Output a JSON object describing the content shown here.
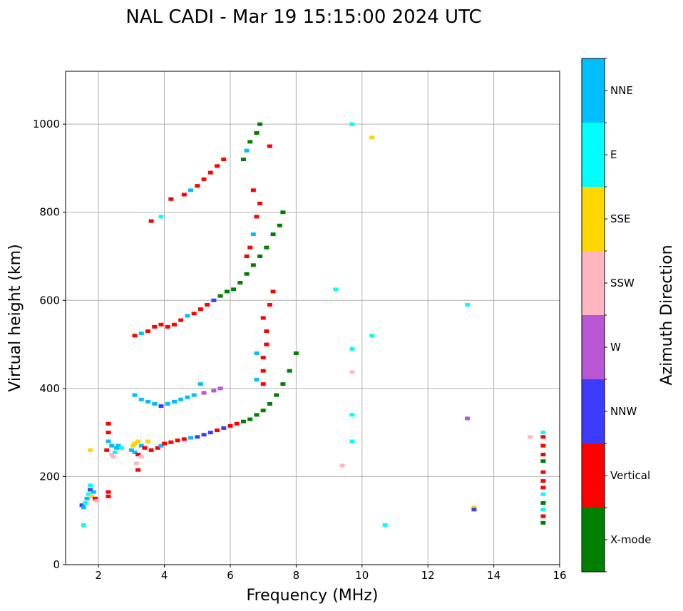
{
  "chart_data": {
    "type": "scatter",
    "title": "NAL CADI - Mar 19 15:15:00 2024 UTC",
    "xlabel": "Frequency (MHz)",
    "ylabel": "Virtual height (km)",
    "xlim": [
      1,
      16
    ],
    "ylim": [
      0,
      1120
    ],
    "xticks": [
      2,
      4,
      6,
      8,
      10,
      12,
      14,
      16
    ],
    "yticks": [
      0,
      200,
      400,
      600,
      800,
      1000
    ],
    "grid": true,
    "colorbar": {
      "label": "Azimuth Direction",
      "placement": "right",
      "categories": [
        {
          "name": "X-mode",
          "color": "#008000"
        },
        {
          "name": "Vertical",
          "color": "#ff0000"
        },
        {
          "name": "NNW",
          "color": "#3c3cff"
        },
        {
          "name": "W",
          "color": "#b956d6"
        },
        {
          "name": "SSW",
          "color": "#ffb6c1"
        },
        {
          "name": "SSE",
          "color": "#ffd700"
        },
        {
          "name": "E",
          "color": "#00ffff"
        },
        {
          "name": "NNE",
          "color": "#00bfff"
        }
      ]
    },
    "points": [
      [
        1.55,
        90,
        "E"
      ],
      [
        1.5,
        135,
        "NNW"
      ],
      [
        1.55,
        130,
        "NNE"
      ],
      [
        1.6,
        140,
        "E"
      ],
      [
        1.65,
        150,
        "NNE"
      ],
      [
        1.7,
        160,
        "E"
      ],
      [
        1.75,
        170,
        "NNW"
      ],
      [
        1.75,
        180,
        "E"
      ],
      [
        1.8,
        155,
        "SSE"
      ],
      [
        1.85,
        165,
        "NNE"
      ],
      [
        1.9,
        150,
        "Vertical"
      ],
      [
        1.95,
        145,
        "SSW"
      ],
      [
        2.3,
        155,
        "Vertical"
      ],
      [
        2.3,
        165,
        "Vertical"
      ],
      [
        1.75,
        260,
        "SSE"
      ],
      [
        2.25,
        260,
        "Vertical"
      ],
      [
        2.3,
        280,
        "NNE"
      ],
      [
        2.3,
        300,
        "Vertical"
      ],
      [
        2.3,
        320,
        "Vertical"
      ],
      [
        2.4,
        250,
        "SSW"
      ],
      [
        2.45,
        245,
        "SSW"
      ],
      [
        2.5,
        255,
        "E"
      ],
      [
        2.55,
        265,
        "NNE"
      ],
      [
        2.6,
        270,
        "NNE"
      ],
      [
        2.7,
        265,
        "E"
      ],
      [
        2.4,
        270,
        "NNE"
      ],
      [
        3.0,
        260,
        "NNE"
      ],
      [
        3.05,
        270,
        "SSE"
      ],
      [
        3.1,
        275,
        "SSE"
      ],
      [
        3.2,
        280,
        "SSE"
      ],
      [
        3.3,
        270,
        "NNE"
      ],
      [
        3.4,
        265,
        "Vertical"
      ],
      [
        3.5,
        280,
        "SSE"
      ],
      [
        3.1,
        255,
        "NNE"
      ],
      [
        3.2,
        250,
        "Vertical"
      ],
      [
        3.3,
        245,
        "SSW"
      ],
      [
        3.15,
        230,
        "SSW"
      ],
      [
        3.2,
        215,
        "Vertical"
      ],
      [
        3.6,
        260,
        "Vertical"
      ],
      [
        3.8,
        265,
        "Vertical"
      ],
      [
        3.9,
        270,
        "NNE"
      ],
      [
        4.0,
        275,
        "Vertical"
      ],
      [
        4.2,
        278,
        "Vertical"
      ],
      [
        4.4,
        282,
        "Vertical"
      ],
      [
        4.6,
        285,
        "Vertical"
      ],
      [
        4.8,
        288,
        "NNE"
      ],
      [
        5.0,
        290,
        "NNW"
      ],
      [
        5.2,
        295,
        "NNW"
      ],
      [
        5.4,
        300,
        "NNW"
      ],
      [
        5.6,
        305,
        "Vertical"
      ],
      [
        5.8,
        310,
        "NNW"
      ],
      [
        6.0,
        315,
        "Vertical"
      ],
      [
        6.2,
        320,
        "Vertical"
      ],
      [
        6.4,
        325,
        "X-mode"
      ],
      [
        6.6,
        330,
        "X-mode"
      ],
      [
        6.8,
        340,
        "X-mode"
      ],
      [
        7.0,
        350,
        "X-mode"
      ],
      [
        7.2,
        365,
        "X-mode"
      ],
      [
        7.4,
        385,
        "X-mode"
      ],
      [
        7.6,
        410,
        "X-mode"
      ],
      [
        7.8,
        440,
        "X-mode"
      ],
      [
        8.0,
        480,
        "X-mode"
      ],
      [
        3.1,
        385,
        "NNE"
      ],
      [
        3.3,
        375,
        "NNE"
      ],
      [
        3.5,
        370,
        "NNE"
      ],
      [
        3.7,
        365,
        "NNE"
      ],
      [
        3.9,
        360,
        "NNW"
      ],
      [
        4.1,
        365,
        "NNE"
      ],
      [
        4.3,
        370,
        "NNE"
      ],
      [
        4.5,
        375,
        "NNE"
      ],
      [
        4.7,
        380,
        "NNE"
      ],
      [
        4.9,
        385,
        "NNE"
      ],
      [
        5.2,
        390,
        "W"
      ],
      [
        5.5,
        395,
        "W"
      ],
      [
        5.7,
        400,
        "W"
      ],
      [
        5.1,
        410,
        "NNE"
      ],
      [
        3.1,
        520,
        "Vertical"
      ],
      [
        3.3,
        525,
        "NNE"
      ],
      [
        3.5,
        530,
        "Vertical"
      ],
      [
        3.7,
        540,
        "Vertical"
      ],
      [
        3.9,
        545,
        "Vertical"
      ],
      [
        4.1,
        540,
        "Vertical"
      ],
      [
        4.3,
        545,
        "Vertical"
      ],
      [
        4.5,
        555,
        "Vertical"
      ],
      [
        4.7,
        565,
        "NNE"
      ],
      [
        4.9,
        570,
        "Vertical"
      ],
      [
        5.1,
        580,
        "Vertical"
      ],
      [
        5.3,
        590,
        "Vertical"
      ],
      [
        5.5,
        600,
        "NNW"
      ],
      [
        5.7,
        610,
        "X-mode"
      ],
      [
        5.9,
        620,
        "X-mode"
      ],
      [
        6.1,
        625,
        "X-mode"
      ],
      [
        6.3,
        640,
        "X-mode"
      ],
      [
        6.5,
        660,
        "X-mode"
      ],
      [
        6.7,
        680,
        "X-mode"
      ],
      [
        6.9,
        700,
        "X-mode"
      ],
      [
        7.1,
        720,
        "X-mode"
      ],
      [
        7.3,
        750,
        "X-mode"
      ],
      [
        7.5,
        770,
        "X-mode"
      ],
      [
        7.6,
        800,
        "X-mode"
      ],
      [
        6.5,
        700,
        "Vertical"
      ],
      [
        6.6,
        720,
        "Vertical"
      ],
      [
        6.7,
        750,
        "NNE"
      ],
      [
        6.8,
        790,
        "Vertical"
      ],
      [
        6.9,
        820,
        "Vertical"
      ],
      [
        6.7,
        850,
        "Vertical"
      ],
      [
        7.0,
        410,
        "Vertical"
      ],
      [
        7.0,
        440,
        "Vertical"
      ],
      [
        7.0,
        470,
        "Vertical"
      ],
      [
        7.1,
        500,
        "Vertical"
      ],
      [
        7.1,
        530,
        "Vertical"
      ],
      [
        7.0,
        560,
        "Vertical"
      ],
      [
        7.2,
        590,
        "Vertical"
      ],
      [
        7.3,
        620,
        "Vertical"
      ],
      [
        6.8,
        420,
        "NNE"
      ],
      [
        6.8,
        480,
        "NNE"
      ],
      [
        3.6,
        780,
        "Vertical"
      ],
      [
        3.9,
        790,
        "E"
      ],
      [
        4.2,
        830,
        "Vertical"
      ],
      [
        4.6,
        840,
        "Vertical"
      ],
      [
        4.8,
        850,
        "NNE"
      ],
      [
        5.0,
        860,
        "Vertical"
      ],
      [
        5.2,
        875,
        "Vertical"
      ],
      [
        5.4,
        890,
        "Vertical"
      ],
      [
        5.6,
        905,
        "Vertical"
      ],
      [
        5.8,
        920,
        "Vertical"
      ],
      [
        6.4,
        920,
        "X-mode"
      ],
      [
        6.5,
        940,
        "NNE"
      ],
      [
        6.6,
        960,
        "X-mode"
      ],
      [
        6.8,
        980,
        "X-mode"
      ],
      [
        6.9,
        1000,
        "X-mode"
      ],
      [
        7.2,
        950,
        "Vertical"
      ],
      [
        9.7,
        1000,
        "E"
      ],
      [
        10.3,
        970,
        "SSE"
      ],
      [
        9.2,
        625,
        "E"
      ],
      [
        10.3,
        520,
        "E"
      ],
      [
        9.7,
        490,
        "E"
      ],
      [
        9.7,
        437,
        "SSW"
      ],
      [
        9.7,
        340,
        "E"
      ],
      [
        9.7,
        280,
        "E"
      ],
      [
        9.4,
        225,
        "SSW"
      ],
      [
        10.7,
        90,
        "E"
      ],
      [
        13.2,
        590,
        "E"
      ],
      [
        13.2,
        332,
        "W"
      ],
      [
        13.4,
        130,
        "SSE"
      ],
      [
        13.4,
        125,
        "NNW"
      ],
      [
        15.1,
        290,
        "SSW"
      ],
      [
        15.5,
        300,
        "E"
      ],
      [
        15.5,
        290,
        "Vertical"
      ],
      [
        15.5,
        270,
        "Vertical"
      ],
      [
        15.5,
        250,
        "Vertical"
      ],
      [
        15.5,
        235,
        "X-mode"
      ],
      [
        15.5,
        210,
        "Vertical"
      ],
      [
        15.5,
        190,
        "Vertical"
      ],
      [
        15.5,
        175,
        "Vertical"
      ],
      [
        15.5,
        160,
        "E"
      ],
      [
        15.5,
        140,
        "X-mode"
      ],
      [
        15.5,
        125,
        "E"
      ],
      [
        15.5,
        110,
        "Vertical"
      ],
      [
        15.5,
        95,
        "X-mode"
      ]
    ]
  }
}
